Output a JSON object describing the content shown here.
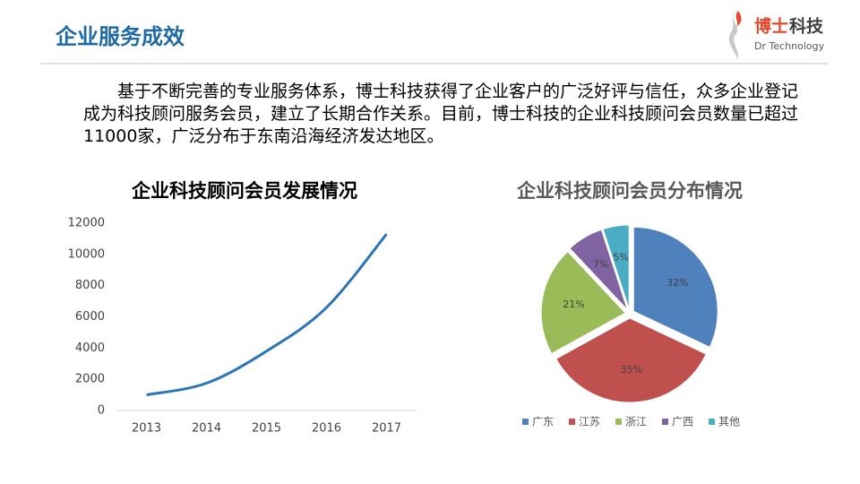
{
  "header": {
    "title": "企业服务成效",
    "brand": [
      "博士",
      "科技"
    ],
    "brand_sub": "Dr Technology"
  },
  "paragraph": "基于不断完善的专业服务体系，博士科技获得了企业客户的广泛好评与信任，众多企业登记成为科技顾问服务会员，建立了长期合作关系。目前，博士科技的企业科技顾问会员数量已超过11000家，广泛分布于东南沿海经济发达地区。",
  "chart_data": [
    {
      "type": "line",
      "title": "企业科技顾问会员发展情况",
      "categories": [
        "2013",
        "2014",
        "2015",
        "2016",
        "2017"
      ],
      "values": [
        1000,
        1750,
        3800,
        6600,
        11300
      ],
      "color": "#2e75b6",
      "ylim": [
        0,
        12000
      ],
      "yticks": [
        0,
        2000,
        4000,
        6000,
        8000,
        10000,
        12000
      ],
      "grid": false
    },
    {
      "type": "pie",
      "title": "企业科技顾问会员分布情况",
      "categories": [
        "广东",
        "江苏",
        "浙江",
        "广西",
        "其他"
      ],
      "values": [
        32,
        35,
        21,
        7,
        5
      ],
      "value_labels": [
        "32%",
        "35%",
        "21%",
        "7%",
        "5%"
      ],
      "colors": [
        "#4f81bd",
        "#c0504d",
        "#9bbb59",
        "#8064a2",
        "#4bacc6"
      ],
      "legend": "bottom"
    }
  ]
}
